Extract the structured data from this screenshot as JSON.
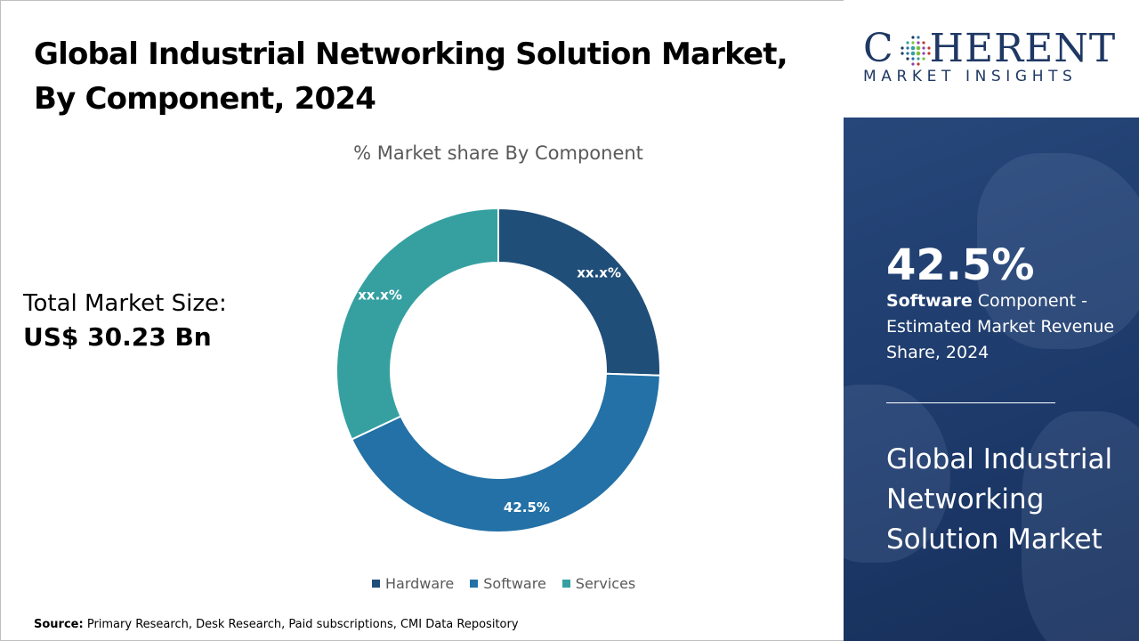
{
  "header": {
    "title": "Global Industrial Networking Solution Market, By Component, 2024"
  },
  "market_size": {
    "label": "Total Market Size:",
    "value": "US$ 30.23 Bn"
  },
  "source": {
    "label": "Source:",
    "text": "Primary Research, Desk Research, Paid subscriptions, CMI Data Repository"
  },
  "brand": {
    "name_part1": "C",
    "name_part2": "HERENT",
    "subtitle": "MARKET INSIGHTS"
  },
  "side_panel": {
    "highlight_value": "42.5%",
    "highlight_segment": "Software",
    "highlight_text": " Component - Estimated Market Revenue Share, 2024",
    "market_name": "Global Industrial Networking Solution Market"
  },
  "colors": {
    "hardware": "#1f4e79",
    "software": "#2371a6",
    "services": "#36a0a1",
    "panel": "#1d3a6b",
    "brand": "#1f3864"
  },
  "chart_data": {
    "type": "pie",
    "title": "% Market share By Component",
    "categories": [
      "Hardware",
      "Software",
      "Services"
    ],
    "values": [
      25.5,
      42.5,
      32.0
    ],
    "data_labels": [
      "xx.x%",
      "42.5%",
      "xx.x%"
    ],
    "colors": [
      "#1f4e79",
      "#2371a6",
      "#36a0a1"
    ],
    "donut": true,
    "legend_position": "bottom"
  }
}
